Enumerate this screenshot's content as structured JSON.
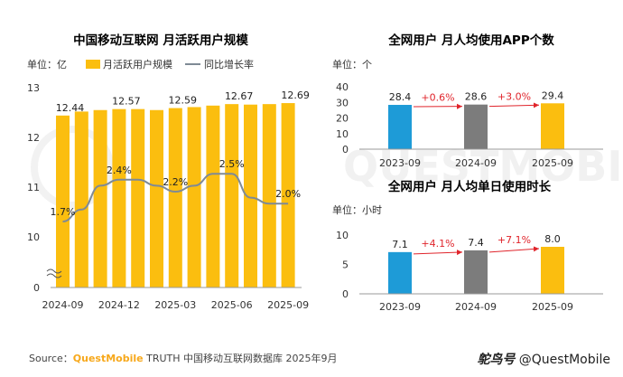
{
  "left_chart": {
    "title": "中国移动互联网 月活跃用户规模",
    "unit_label": "单位：亿",
    "legend": {
      "bar": "月活跃用户规模",
      "line": "同比增长率"
    },
    "y_ticks": [
      "13",
      "12",
      "11",
      "10",
      "0"
    ],
    "x_ticks": [
      "2024-09",
      "2024-12",
      "2025-03",
      "2025-06",
      "2025-09"
    ]
  },
  "right_top": {
    "title": "全网用户 月人均使用APP个数",
    "unit_label": "单位：个",
    "y_ticks": [
      "40",
      "30",
      "20",
      "10",
      "0"
    ],
    "growth_labels": [
      "+0.6%",
      "+3.0%"
    ]
  },
  "right_bottom": {
    "title": "全网用户 月人均单日使用时长",
    "unit_label": "单位：小时",
    "y_ticks": [
      "10",
      "5",
      "0"
    ],
    "growth_labels": [
      "+4.1%",
      "+7.1%"
    ]
  },
  "colors": {
    "bar_yellow": "#FBBE0F",
    "bar_blue": "#1E9BD7",
    "bar_gray": "#7C7C7C",
    "line_gray": "#7F8A95",
    "arrow_red": "#E0242B",
    "brand": "#F7A81B"
  },
  "footer": {
    "prefix": "Source：",
    "brand": "QuestMobile",
    "rest": " TRUTH 中国移动互联网数据库 2025年9月"
  },
  "watermark": {
    "cn": "鸵鸟号",
    "en": " @QuestMobile"
  },
  "chart_data": [
    {
      "type": "bar",
      "title": "中国移动互联网 月活跃用户规模",
      "categories": [
        "2024-09",
        "2024-10",
        "2024-11",
        "2024-12",
        "2025-01",
        "2025-02",
        "2025-03",
        "2025-04",
        "2025-05",
        "2025-06",
        "2025-07",
        "2025-08",
        "2025-09"
      ],
      "series": [
        {
          "name": "月活跃用户规模",
          "values": [
            12.44,
            12.52,
            12.55,
            12.57,
            12.57,
            12.55,
            12.59,
            12.61,
            12.64,
            12.67,
            12.66,
            12.67,
            12.69
          ]
        },
        {
          "name": "同比增长率",
          "type": "line",
          "values": [
            1.7,
            1.9,
            2.3,
            2.4,
            2.4,
            2.3,
            2.2,
            2.3,
            2.5,
            2.5,
            2.1,
            2.0,
            2.0
          ]
        }
      ],
      "data_labels": {
        "bars": [
          "12.44",
          "12.57",
          "12.59",
          "12.67",
          "12.69"
        ],
        "line": [
          "1.7%",
          "2.4%",
          "2.2%",
          "2.5%",
          "2.0%"
        ]
      },
      "ylabel": "单位：亿",
      "ylim": [
        0,
        13
      ],
      "axis_break": true
    },
    {
      "type": "bar",
      "title": "全网用户 月人均使用APP个数",
      "categories": [
        "2023-09",
        "2024-09",
        "2025-09"
      ],
      "values": [
        28.4,
        28.6,
        29.4
      ],
      "ylabel": "单位：个",
      "ylim": [
        0,
        40
      ],
      "annotations": [
        "+0.6%",
        "+3.0%"
      ]
    },
    {
      "type": "bar",
      "title": "全网用户 月人均单日使用时长",
      "categories": [
        "2023-09",
        "2024-09",
        "2025-09"
      ],
      "values": [
        7.1,
        7.4,
        8.0
      ],
      "ylabel": "单位：小时",
      "ylim": [
        0,
        10
      ],
      "annotations": [
        "+4.1%",
        "+7.1%"
      ]
    }
  ]
}
